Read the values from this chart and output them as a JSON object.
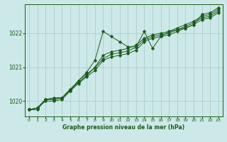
{
  "title": "Graphe pression niveau de la mer (hPa)",
  "background_color": "#cde8e8",
  "grid_color": "#aecccc",
  "line_color": "#1a5c1a",
  "xlim": [
    -0.5,
    23.5
  ],
  "ylim": [
    1019.55,
    1022.85
  ],
  "yticks": [
    1020,
    1021,
    1022
  ],
  "xticks": [
    0,
    1,
    2,
    3,
    4,
    5,
    6,
    7,
    8,
    9,
    10,
    11,
    12,
    13,
    14,
    15,
    16,
    17,
    18,
    19,
    20,
    21,
    22,
    23
  ],
  "lines": [
    [
      1019.75,
      1019.75,
      1020.05,
      1020.1,
      1020.1,
      1020.3,
      1020.6,
      1020.85,
      1021.2,
      1022.05,
      1021.9,
      1021.75,
      1021.6,
      1021.6,
      1022.05,
      1021.55,
      1021.9,
      1022.05,
      1022.1,
      1022.15,
      1022.25,
      1022.55,
      1022.6,
      1022.75
    ],
    [
      1019.75,
      1019.8,
      1020.05,
      1020.05,
      1020.1,
      1020.35,
      1020.55,
      1020.75,
      1021.0,
      1021.35,
      1021.45,
      1021.5,
      1021.55,
      1021.65,
      1021.85,
      1021.95,
      1022.0,
      1022.05,
      1022.15,
      1022.25,
      1022.35,
      1022.5,
      1022.55,
      1022.7
    ],
    [
      1019.75,
      1019.8,
      1020.05,
      1020.05,
      1020.1,
      1020.35,
      1020.6,
      1020.8,
      1020.98,
      1021.25,
      1021.38,
      1021.42,
      1021.48,
      1021.58,
      1021.8,
      1021.9,
      1021.95,
      1022.0,
      1022.1,
      1022.2,
      1022.3,
      1022.45,
      1022.5,
      1022.65
    ],
    [
      1019.75,
      1019.8,
      1020.0,
      1020.0,
      1020.05,
      1020.3,
      1020.52,
      1020.72,
      1020.9,
      1021.2,
      1021.3,
      1021.35,
      1021.4,
      1021.5,
      1021.75,
      1021.85,
      1021.9,
      1021.95,
      1022.05,
      1022.15,
      1022.25,
      1022.4,
      1022.45,
      1022.6
    ]
  ]
}
